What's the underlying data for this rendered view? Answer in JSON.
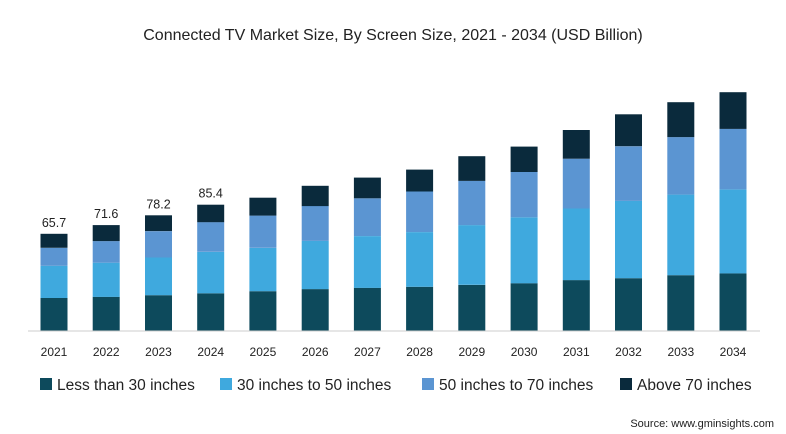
{
  "chart_data": {
    "type": "bar",
    "stacked": true,
    "title": "Connected TV Market Size, By Screen Size, 2021 - 2034 (USD Billion)",
    "xlabel": "",
    "ylabel": "",
    "ylim": [
      0,
      190
    ],
    "grid": false,
    "legend_position": "bottom",
    "categories": [
      "2021",
      "2022",
      "2023",
      "2024",
      "2025",
      "2026",
      "2027",
      "2028",
      "2029",
      "2030",
      "2031",
      "2032",
      "2033",
      "2034"
    ],
    "series": [
      {
        "name": "Less than 30 inches",
        "color": "#0d4a5c",
        "values": [
          22.3,
          23.1,
          24.2,
          25.5,
          26.9,
          28.3,
          29.2,
          29.9,
          31.2,
          32.3,
          34.4,
          35.7,
          37.7,
          39.0
        ]
      },
      {
        "name": "30 inches to 50 inches",
        "color": "#3fa9de",
        "values": [
          21.8,
          23.1,
          25.5,
          28.0,
          29.3,
          32.6,
          35.0,
          37.0,
          40.4,
          44.6,
          48.4,
          52.3,
          54.5,
          56.7
        ]
      },
      {
        "name": "50 inches to 70 inches",
        "color": "#5b95d2",
        "values": [
          12.1,
          14.6,
          17.8,
          20.1,
          21.8,
          23.6,
          25.5,
          27.4,
          29.9,
          30.6,
          33.7,
          36.9,
          38.9,
          41.0
        ]
      },
      {
        "name": "Above 70 inches",
        "color": "#0a2a3c",
        "values": [
          9.5,
          10.8,
          10.7,
          11.8,
          12.1,
          13.7,
          14.0,
          14.8,
          16.7,
          17.2,
          19.4,
          21.6,
          23.6,
          24.8
        ]
      }
    ],
    "data_labels": [
      "65.7",
      "71.6",
      "78.2",
      "85.4"
    ]
  },
  "source": "Source: www.gminsights.com"
}
